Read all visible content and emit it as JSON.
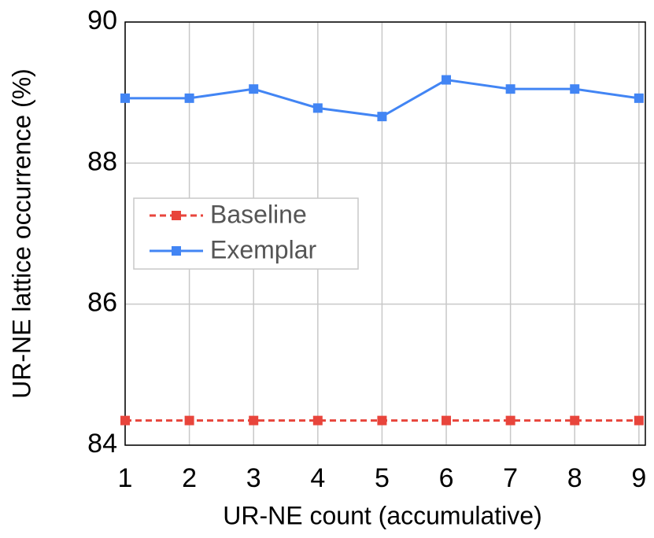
{
  "chart_data": {
    "type": "line",
    "x_label": "UR-NE count (accumulative)",
    "y_label": "UR-NE lattice occurrence (%)",
    "x": [
      1,
      2,
      3,
      4,
      5,
      6,
      7,
      8,
      9
    ],
    "series": [
      {
        "name": "Baseline",
        "color": "#e8453c",
        "dashed": true,
        "values": [
          84.35,
          84.35,
          84.35,
          84.35,
          84.35,
          84.35,
          84.35,
          84.35,
          84.35
        ]
      },
      {
        "name": "Exemplar",
        "color": "#4285f4",
        "dashed": false,
        "values": [
          88.92,
          88.92,
          89.05,
          88.78,
          88.66,
          89.18,
          89.05,
          89.05,
          88.92
        ]
      }
    ],
    "xlim": [
      1,
      9.1
    ],
    "xticks": [
      1,
      2,
      3,
      4,
      5,
      6,
      7,
      8,
      9
    ],
    "ylim": [
      84,
      90
    ],
    "yticks": [
      84,
      86,
      88,
      90
    ],
    "grid": true,
    "legend": "center left"
  }
}
